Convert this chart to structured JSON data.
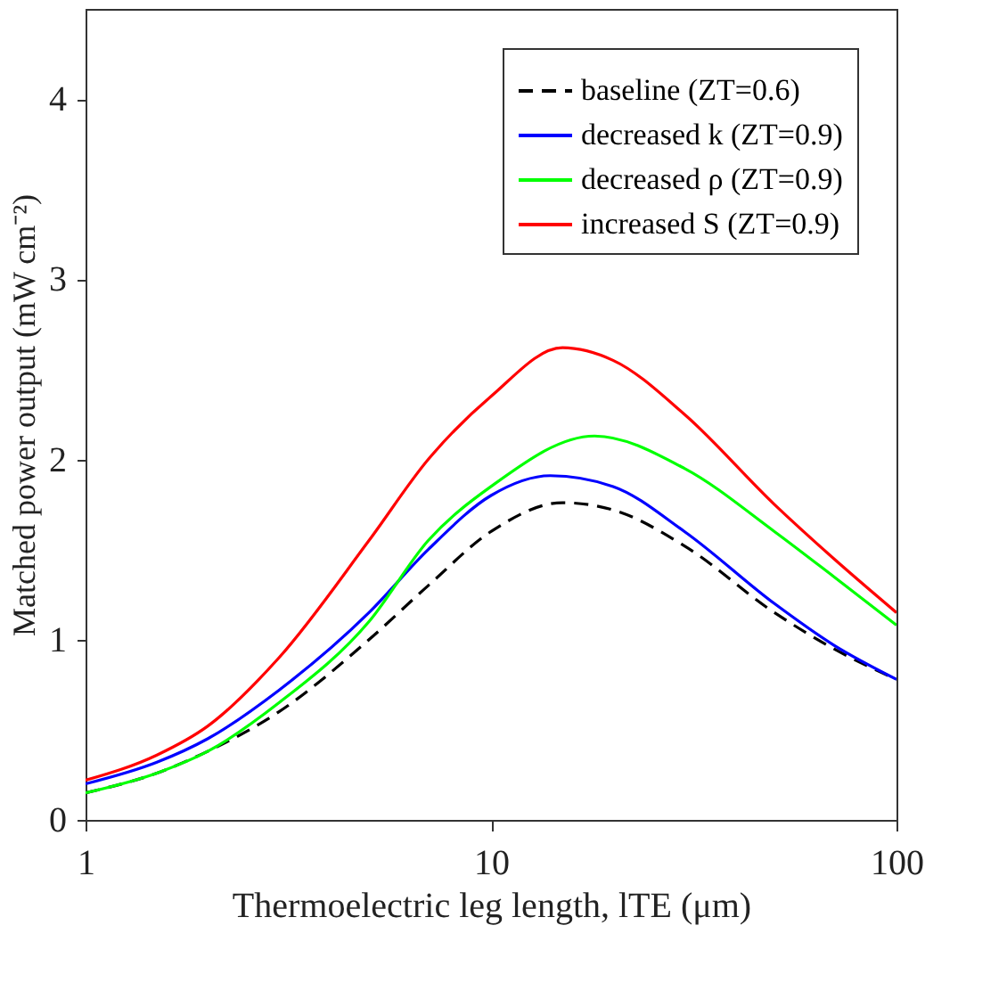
{
  "chart_data": {
    "type": "line",
    "xlabel": "Thermoelectric leg length, lTE (μm)",
    "ylabel": "Matched power output (mW cm⁻²)",
    "log": "x",
    "xlim": [
      1,
      100
    ],
    "xticks": [
      1,
      10,
      100
    ],
    "ylim": [
      0,
      4.5
    ],
    "yticks": [
      0,
      1,
      2,
      3,
      4
    ],
    "grid": false,
    "legend": "top right",
    "series": [
      {
        "name": "baseline (ZT=0.6)",
        "color": "#000000",
        "line_style": "dashed",
        "x": [
          1,
          1.5,
          2,
          3,
          5,
          7,
          10,
          15,
          20,
          30,
          50,
          70,
          100
        ],
        "values": [
          0.15,
          0.26,
          0.38,
          0.6,
          1.0,
          1.3,
          1.6,
          1.76,
          1.72,
          1.52,
          1.15,
          0.95,
          0.78
        ]
      },
      {
        "name": "decreased k (ZT=0.9)",
        "color": "#0000ff",
        "line_style": "solid",
        "x": [
          1,
          1.5,
          2,
          3,
          5,
          7,
          10,
          14,
          20,
          30,
          50,
          70,
          100
        ],
        "values": [
          0.2,
          0.32,
          0.45,
          0.72,
          1.15,
          1.5,
          1.8,
          1.91,
          1.85,
          1.6,
          1.2,
          0.97,
          0.78
        ]
      },
      {
        "name": "decreased ρ (ZT=0.9)",
        "color": "#00ff00",
        "line_style": "solid",
        "x": [
          1,
          1.5,
          2,
          3,
          5,
          7,
          10,
          18,
          30,
          50,
          70,
          100
        ],
        "values": [
          0.15,
          0.26,
          0.38,
          0.65,
          1.1,
          1.55,
          1.85,
          2.13,
          1.95,
          1.6,
          1.35,
          1.08
        ]
      },
      {
        "name": "increased S (ZT=0.9)",
        "color": "#ff0000",
        "line_style": "solid",
        "x": [
          1,
          1.5,
          2,
          3,
          5,
          7,
          10,
          15,
          20,
          30,
          50,
          70,
          100
        ],
        "values": [
          0.22,
          0.36,
          0.52,
          0.9,
          1.55,
          2.0,
          2.35,
          2.62,
          2.55,
          2.25,
          1.75,
          1.45,
          1.15
        ]
      }
    ]
  }
}
